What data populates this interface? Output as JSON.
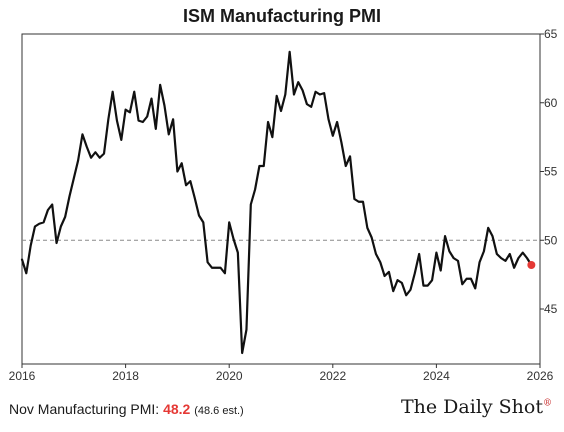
{
  "chart_data": {
    "type": "line",
    "title": "ISM Manufacturing PMI",
    "xlabel": "",
    "ylabel": "",
    "xlim": [
      2016.0,
      2026.0
    ],
    "ylim": [
      41,
      65
    ],
    "x_ticks": [
      "2016",
      "2018",
      "2020",
      "2022",
      "2024",
      "2026"
    ],
    "y_ticks": [
      "45",
      "50",
      "55",
      "60",
      "65"
    ],
    "reference_line": {
      "y": 50,
      "style": "dashed"
    },
    "grid": false,
    "series": [
      {
        "values": [
          [
            2016.0,
            48.6
          ],
          [
            2016.083,
            47.6
          ],
          [
            2016.167,
            49.6
          ],
          [
            2016.25,
            51.0
          ],
          [
            2016.333,
            51.2
          ],
          [
            2016.417,
            51.3
          ],
          [
            2016.5,
            52.2
          ],
          [
            2016.583,
            52.6
          ],
          [
            2016.667,
            49.8
          ],
          [
            2016.75,
            51.0
          ],
          [
            2016.833,
            51.7
          ],
          [
            2016.917,
            53.2
          ],
          [
            2017.0,
            54.5
          ],
          [
            2017.083,
            55.8
          ],
          [
            2017.167,
            57.7
          ],
          [
            2017.25,
            56.8
          ],
          [
            2017.333,
            56.0
          ],
          [
            2017.417,
            56.4
          ],
          [
            2017.5,
            56.0
          ],
          [
            2017.583,
            56.3
          ],
          [
            2017.667,
            58.8
          ],
          [
            2017.75,
            60.8
          ],
          [
            2017.833,
            58.7
          ],
          [
            2017.917,
            57.3
          ],
          [
            2018.0,
            59.5
          ],
          [
            2018.083,
            59.3
          ],
          [
            2018.167,
            60.8
          ],
          [
            2018.25,
            58.7
          ],
          [
            2018.333,
            58.6
          ],
          [
            2018.417,
            59.0
          ],
          [
            2018.5,
            60.3
          ],
          [
            2018.583,
            58.1
          ],
          [
            2018.667,
            61.3
          ],
          [
            2018.75,
            59.8
          ],
          [
            2018.833,
            57.7
          ],
          [
            2018.917,
            58.8
          ],
          [
            2019.0,
            55.0
          ],
          [
            2019.083,
            55.6
          ],
          [
            2019.167,
            54.0
          ],
          [
            2019.25,
            54.3
          ],
          [
            2019.333,
            53.1
          ],
          [
            2019.417,
            51.8
          ],
          [
            2019.5,
            51.3
          ],
          [
            2019.583,
            48.4
          ],
          [
            2019.667,
            48.0
          ],
          [
            2019.75,
            48.0
          ],
          [
            2019.833,
            48.0
          ],
          [
            2019.917,
            47.6
          ],
          [
            2020.0,
            51.3
          ],
          [
            2020.083,
            50.1
          ],
          [
            2020.167,
            49.1
          ],
          [
            2020.25,
            41.8
          ],
          [
            2020.333,
            43.5
          ],
          [
            2020.417,
            52.6
          ],
          [
            2020.5,
            53.7
          ],
          [
            2020.583,
            55.4
          ],
          [
            2020.667,
            55.4
          ],
          [
            2020.75,
            58.6
          ],
          [
            2020.833,
            57.5
          ],
          [
            2020.917,
            60.5
          ],
          [
            2021.0,
            59.4
          ],
          [
            2021.083,
            60.6
          ],
          [
            2021.167,
            63.7
          ],
          [
            2021.25,
            60.6
          ],
          [
            2021.333,
            61.5
          ],
          [
            2021.417,
            60.9
          ],
          [
            2021.5,
            59.9
          ],
          [
            2021.583,
            59.7
          ],
          [
            2021.667,
            60.8
          ],
          [
            2021.75,
            60.6
          ],
          [
            2021.833,
            60.7
          ],
          [
            2021.917,
            58.8
          ],
          [
            2022.0,
            57.6
          ],
          [
            2022.083,
            58.6
          ],
          [
            2022.167,
            57.1
          ],
          [
            2022.25,
            55.4
          ],
          [
            2022.333,
            56.1
          ],
          [
            2022.417,
            53.0
          ],
          [
            2022.5,
            52.8
          ],
          [
            2022.583,
            52.8
          ],
          [
            2022.667,
            50.9
          ],
          [
            2022.75,
            50.2
          ],
          [
            2022.833,
            49.0
          ],
          [
            2022.917,
            48.4
          ],
          [
            2023.0,
            47.4
          ],
          [
            2023.083,
            47.7
          ],
          [
            2023.167,
            46.3
          ],
          [
            2023.25,
            47.1
          ],
          [
            2023.333,
            46.9
          ],
          [
            2023.417,
            46.0
          ],
          [
            2023.5,
            46.4
          ],
          [
            2023.583,
            47.6
          ],
          [
            2023.667,
            49.0
          ],
          [
            2023.75,
            46.7
          ],
          [
            2023.833,
            46.7
          ],
          [
            2023.917,
            47.1
          ],
          [
            2024.0,
            49.1
          ],
          [
            2024.083,
            47.8
          ],
          [
            2024.167,
            50.3
          ],
          [
            2024.25,
            49.2
          ],
          [
            2024.333,
            48.7
          ],
          [
            2024.417,
            48.5
          ],
          [
            2024.5,
            46.8
          ],
          [
            2024.583,
            47.2
          ],
          [
            2024.667,
            47.2
          ],
          [
            2024.75,
            46.5
          ],
          [
            2024.833,
            48.4
          ],
          [
            2024.917,
            49.2
          ],
          [
            2025.0,
            50.9
          ],
          [
            2025.083,
            50.3
          ],
          [
            2025.167,
            49.0
          ],
          [
            2025.25,
            48.7
          ],
          [
            2025.333,
            48.5
          ],
          [
            2025.417,
            49.0
          ],
          [
            2025.5,
            48.0
          ],
          [
            2025.583,
            48.7
          ],
          [
            2025.667,
            49.1
          ],
          [
            2025.75,
            48.7
          ],
          [
            2025.833,
            48.2
          ]
        ],
        "color": "#111111"
      }
    ],
    "latest_point": {
      "x": 2025.833,
      "y": 48.2,
      "color": "#e53935"
    }
  },
  "footer": {
    "label": "Nov Manufacturing PMI:",
    "value": "48.2",
    "estimate": "(48.6 est.)"
  },
  "brand": {
    "name": "The Daily Shot",
    "mark": "®"
  }
}
